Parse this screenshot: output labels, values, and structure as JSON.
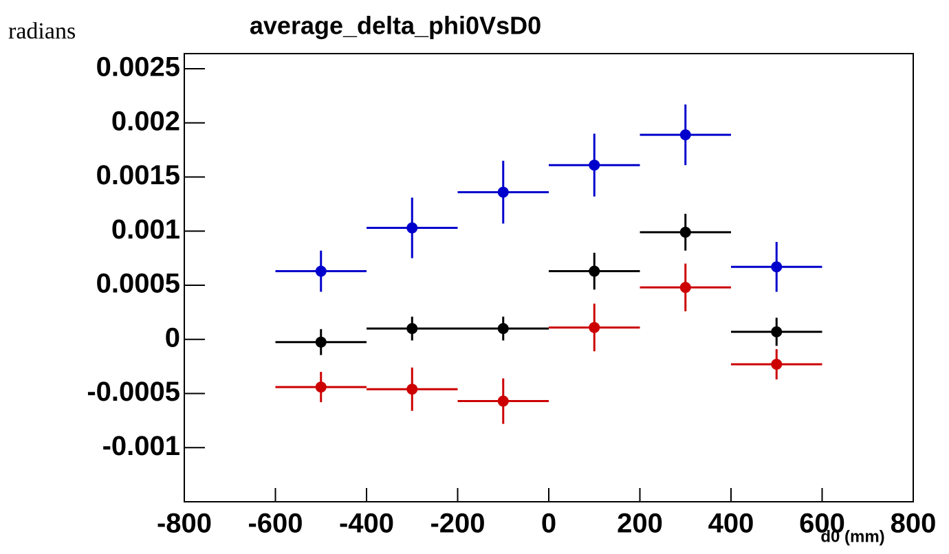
{
  "chart_data": {
    "type": "errorbar",
    "title": "average_delta_phi0VsD0",
    "ylabel": "radians",
    "xlabel": "d0 (mm)",
    "x": [
      -500,
      -300,
      -100,
      100,
      300,
      500
    ],
    "xerr": [
      100,
      100,
      100,
      100,
      100,
      100
    ],
    "series": [
      {
        "color": "#0000cc",
        "values": [
          0.00063,
          0.00103,
          0.00136,
          0.00161,
          0.00189,
          0.00067
        ],
        "errors": [
          0.00019,
          0.00028,
          0.00029,
          0.00029,
          0.00028,
          0.00023
        ]
      },
      {
        "color": "#000000",
        "values": [
          -2.5e-05,
          0.0001,
          0.0001,
          0.00063,
          0.00099,
          7e-05
        ],
        "errors": [
          0.00012,
          0.00011,
          0.00011,
          0.00017,
          0.00017,
          0.00013
        ]
      },
      {
        "color": "#cc0000",
        "values": [
          -0.00044,
          -0.00046,
          -0.00057,
          0.00011,
          0.00048,
          -0.00023
        ],
        "errors": [
          0.00014,
          0.0002,
          0.00021,
          0.00022,
          0.00022,
          0.00014
        ]
      }
    ],
    "xlim": [
      -800,
      800
    ],
    "xticks": [
      -800,
      -600,
      -400,
      -200,
      0,
      200,
      400,
      600,
      800
    ],
    "ylim": [
      -0.0015,
      0.00264
    ],
    "yticks": [
      -0.001,
      -0.0005,
      0,
      0.0005,
      0.001,
      0.0015,
      0.002,
      0.0025
    ]
  }
}
